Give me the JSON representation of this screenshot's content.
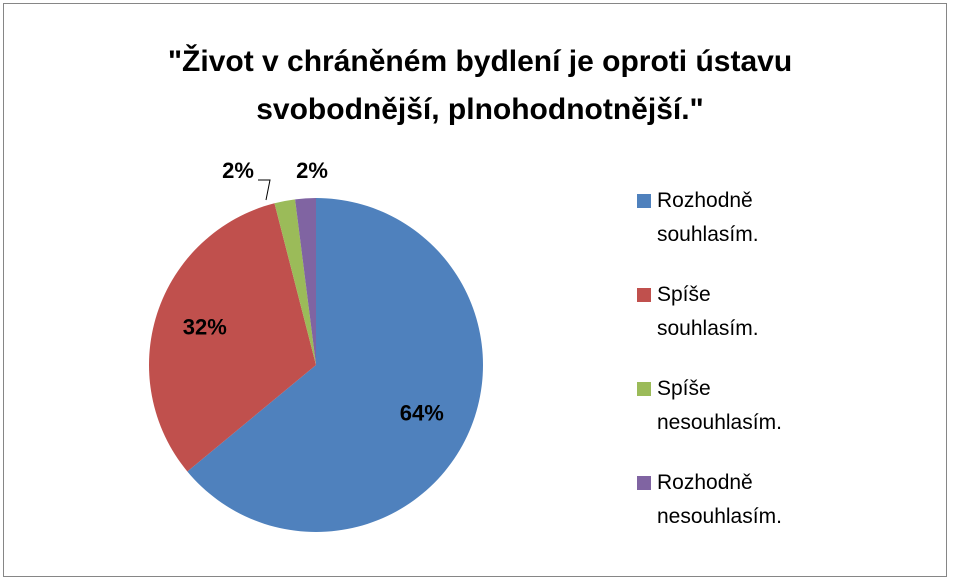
{
  "chart_data": {
    "type": "pie",
    "title": "\"Život v chráněném bydlení je oproti ústavu svobodnější, plnohodnotnější.\"",
    "categories": [
      "Rozhodně souhlasím.",
      "Spíše souhlasím.",
      "Spíše nesouhlasím.",
      "Rozhodně nesouhlasím."
    ],
    "values": [
      64,
      32,
      2,
      2
    ],
    "value_labels": [
      "64%",
      "32%",
      "2%",
      "2%"
    ],
    "colors": [
      "#4f81bd",
      "#c0504d",
      "#9bbb59",
      "#8064a2"
    ],
    "legend": "right"
  }
}
